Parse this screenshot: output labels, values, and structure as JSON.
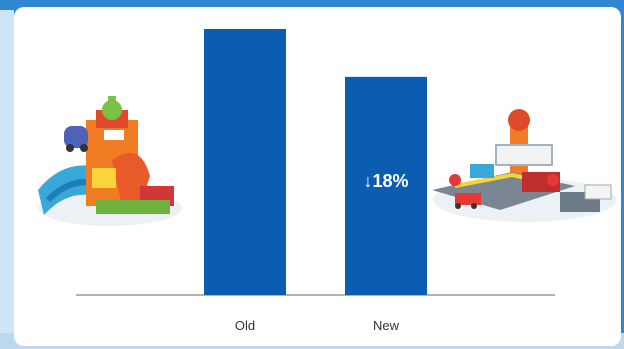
{
  "chart_data": {
    "type": "bar",
    "categories": [
      "Old",
      "New"
    ],
    "values": [
      100,
      82
    ],
    "ylim": [
      0,
      100
    ],
    "title": "",
    "xlabel": "",
    "ylabel": "",
    "annotation": {
      "text": "↓18%",
      "category": "New"
    },
    "bar_color": "#0b5db2"
  },
  "images": {
    "left": "old-playset-illustration",
    "right": "new-playset-illustration"
  },
  "colors": {
    "frame": "#2f88d1",
    "panel": "#ffffff",
    "annotation_text": "#ffffff",
    "axis": "#666666"
  }
}
